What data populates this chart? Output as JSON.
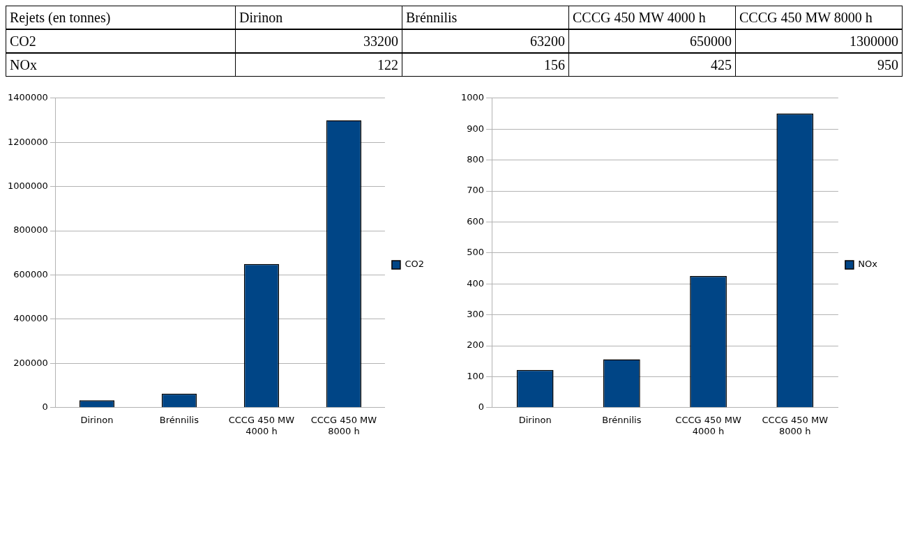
{
  "chart_data": [
    {
      "type": "bar",
      "annotations": [
        "Rejets (en tonnes)",
        "33200",
        "63200",
        "650000",
        "1300000"
      ],
      "categories": [
        "Dirinon",
        "Brénnilis",
        "CCCG 450 MW 4000 h",
        "CCCG 450 MW 8000 h"
      ],
      "series": [
        {
          "name": "CO2",
          "color": "#004586",
          "values": [
            33200,
            63200,
            650000,
            1300000
          ]
        }
      ],
      "ylim": [
        0,
        1400000
      ],
      "yticks": [
        0,
        200000,
        400000,
        600000,
        800000,
        1000000,
        1200000,
        1400000
      ],
      "grid": "y",
      "legend": "right"
    },
    {
      "type": "bar",
      "annotations": [
        "122",
        "156",
        "425",
        "950"
      ],
      "categories": [
        "Dirinon",
        "Brénnilis",
        "CCCG 450 MW 4000 h",
        "CCCG 450 MW 8000 h"
      ],
      "series": [
        {
          "name": "NOx",
          "color": "#004586",
          "values": [
            122,
            156,
            425,
            950
          ]
        }
      ],
      "ylim": [
        0,
        1000
      ],
      "yticks": [
        0,
        100,
        200,
        300,
        400,
        500,
        600,
        700,
        800,
        900,
        1000
      ],
      "grid": "y",
      "legend": "right"
    }
  ]
}
